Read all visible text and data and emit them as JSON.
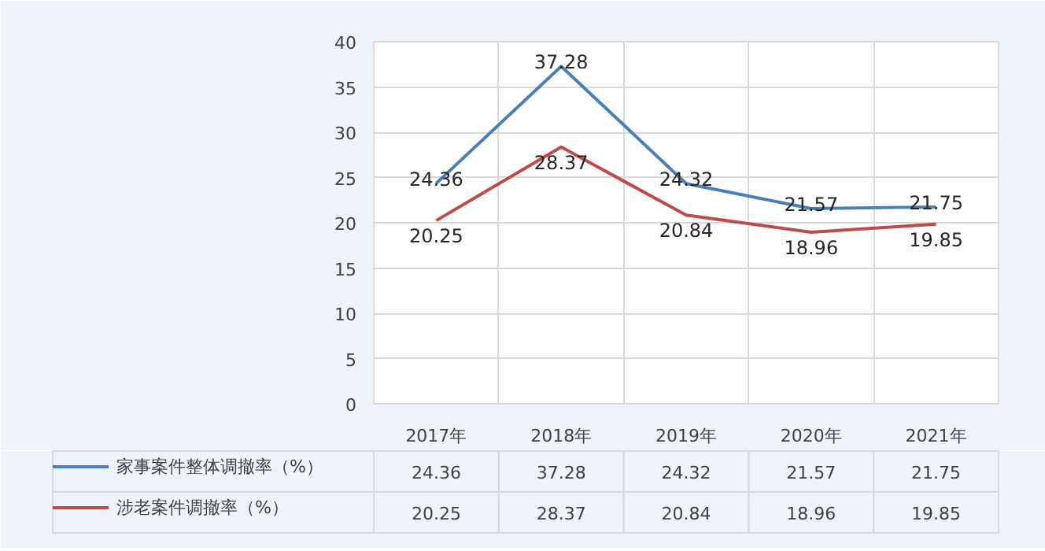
{
  "chart_data": {
    "type": "line",
    "categories": [
      "2017年",
      "2018年",
      "2019年",
      "2020年",
      "2021年"
    ],
    "series": [
      {
        "name": "家事案件整体调撤率（%）",
        "color": "#4a7ebb",
        "values": [
          24.36,
          37.28,
          24.32,
          21.57,
          21.75
        ],
        "value_labels": [
          "24.36",
          "37.28",
          "24.32",
          "21.57",
          "21.75"
        ]
      },
      {
        "name": "涉老案件调撤率（%）",
        "color": "#be4b48",
        "values": [
          20.25,
          28.37,
          20.84,
          18.96,
          19.85
        ],
        "value_labels": [
          "20.25",
          "28.37",
          "20.84",
          "18.96",
          "19.85"
        ]
      }
    ],
    "annotations": [
      {
        "text": "24.36",
        "x": "2017年",
        "y": 24.36
      },
      {
        "text": "37.28",
        "x": "2018年",
        "y": 37.28
      },
      {
        "text": "24.32",
        "x": "2019年",
        "y": 24.32
      },
      {
        "text": "21.57",
        "x": "2020年",
        "y": 21.57
      },
      {
        "text": "21.75",
        "x": "2021年",
        "y": 21.75
      },
      {
        "text": "20.25",
        "x": "2017年",
        "y": 20.25
      },
      {
        "text": "28.37",
        "x": "2018年",
        "y": 28.37
      },
      {
        "text": "20.84",
        "x": "2019年",
        "y": 20.84
      },
      {
        "text": "18.96",
        "x": "2020年",
        "y": 18.96
      },
      {
        "text": "19.85",
        "x": "2021年",
        "y": 19.85
      }
    ],
    "ylim": [
      0,
      40
    ],
    "yticks": [
      0,
      5,
      10,
      15,
      20,
      25,
      30,
      35,
      40
    ],
    "grid": true,
    "legend": "bottom",
    "marker": "none",
    "line_style": "solid"
  }
}
